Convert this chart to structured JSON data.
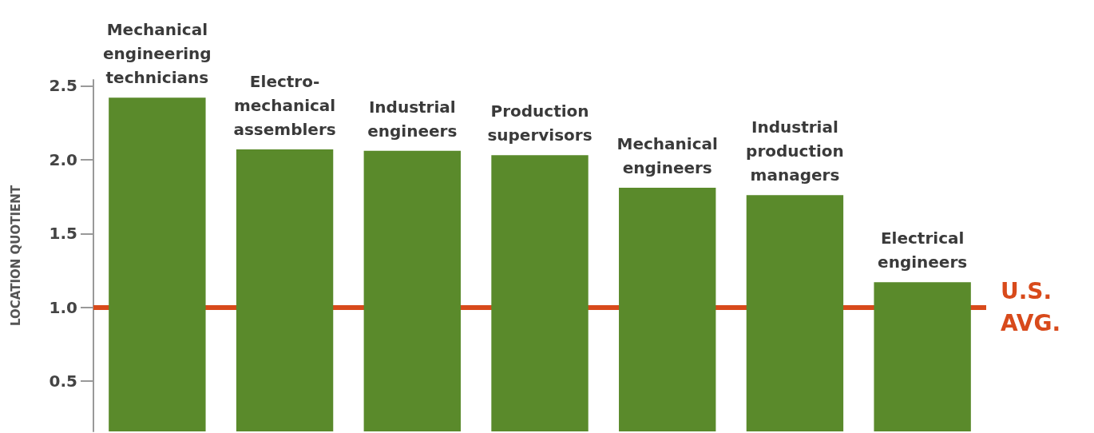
{
  "chart_data": {
    "type": "bar",
    "ylabel": "LOCATION QUOTIENT",
    "categories": [
      "Mechanical engineering technicians",
      "Electro-mechanical assemblers",
      "Industrial engineers",
      "Production supervisors",
      "Mechanical engineers",
      "Industrial production managers",
      "Electrical engineers"
    ],
    "values": [
      2.42,
      2.07,
      2.06,
      2.03,
      1.81,
      1.76,
      1.17
    ],
    "color": "#5a8a2b",
    "ylim": [
      0.16,
      2.54
    ],
    "yticks": [
      {
        "value": 0.5,
        "label": "0.5"
      },
      {
        "value": 1,
        "label": "1.0"
      },
      {
        "value": 1.5,
        "label": "1.5"
      },
      {
        "value": 2,
        "label": "2.0"
      },
      {
        "value": 2.5,
        "label": "2.5"
      }
    ],
    "ref_lines": [
      {
        "axis": "y",
        "value": 1,
        "label": "U.S. AVG.",
        "color": "#d84a1b"
      }
    ],
    "grid": false
  }
}
